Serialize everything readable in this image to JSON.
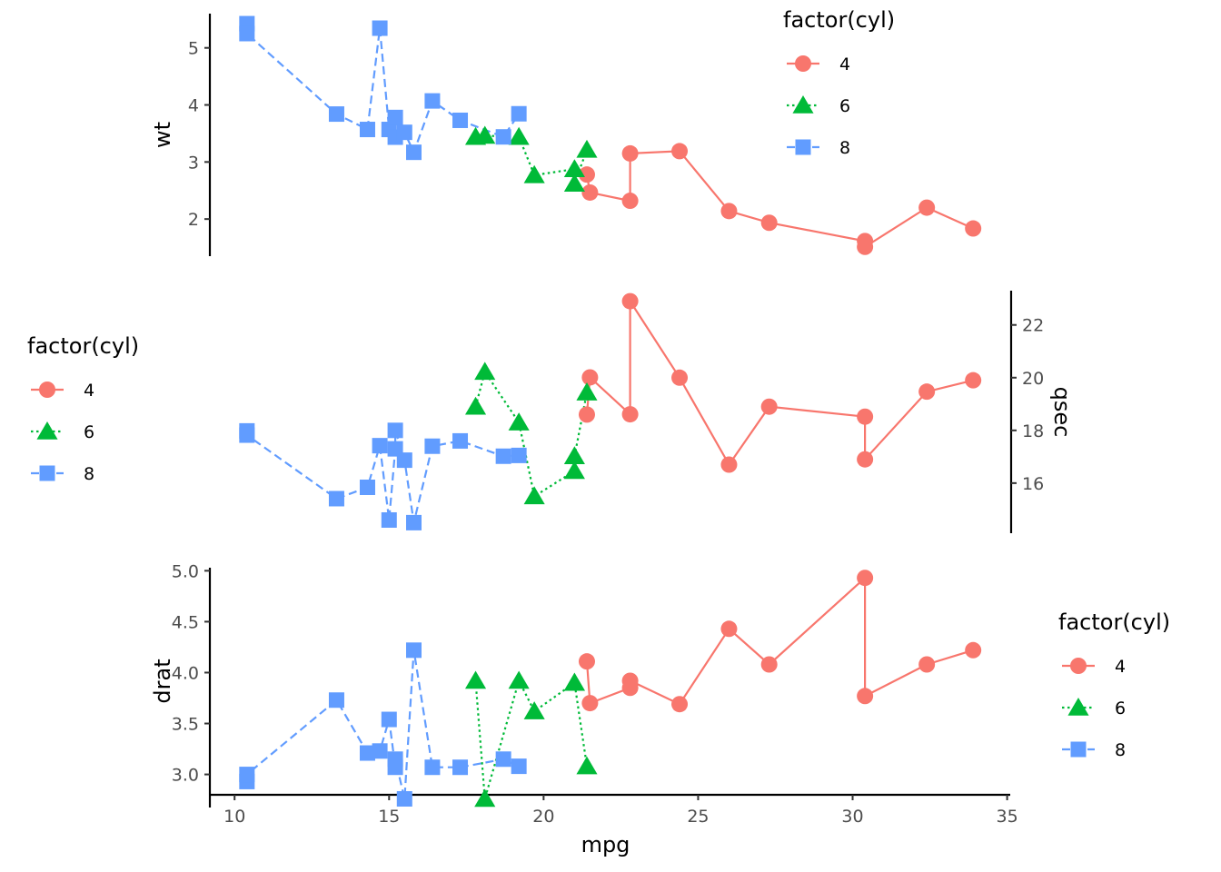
{
  "chart_data": [
    {
      "type": "line",
      "x_var": "mpg",
      "y_var": "wt",
      "ylabel": "wt",
      "xlabel": "",
      "y_axis_side": "left",
      "x_axis_visible": false,
      "xlim": [
        9.2,
        35.1
      ],
      "ylim": [
        1.35,
        5.6
      ],
      "yticks": [
        2,
        3,
        4,
        5
      ],
      "ytick_labels": [
        "2",
        "3",
        "4",
        "5"
      ],
      "grid": false,
      "legend": {
        "title": "factor(cyl)",
        "position": "top-right",
        "labels": [
          "4",
          "6",
          "8"
        ]
      },
      "series": [
        {
          "name": "4",
          "marker": "circle",
          "line": "solid",
          "color": "#F8766D",
          "points": [
            [
              21.4,
              2.78
            ],
            [
              21.5,
              2.465
            ],
            [
              22.8,
              2.32
            ],
            [
              22.8,
              3.15
            ],
            [
              24.4,
              3.19
            ],
            [
              26.0,
              2.14
            ],
            [
              27.3,
              1.935
            ],
            [
              30.4,
              1.615
            ],
            [
              30.4,
              1.513
            ],
            [
              32.4,
              2.2
            ],
            [
              33.9,
              1.835
            ]
          ]
        },
        {
          "name": "6",
          "marker": "triangle",
          "line": "dotted",
          "color": "#00BA38",
          "points": [
            [
              17.8,
              3.44
            ],
            [
              18.1,
              3.46
            ],
            [
              19.2,
              3.44
            ],
            [
              19.7,
              2.77
            ],
            [
              21.0,
              2.875
            ],
            [
              21.0,
              2.62
            ],
            [
              21.4,
              3.215
            ]
          ]
        },
        {
          "name": "8",
          "marker": "square",
          "line": "dashed",
          "color": "#619CFF",
          "points": [
            [
              10.4,
              5.424
            ],
            [
              10.4,
              5.25
            ],
            [
              13.3,
              3.84
            ],
            [
              14.3,
              3.57
            ],
            [
              14.7,
              5.345
            ],
            [
              15.0,
              3.57
            ],
            [
              15.2,
              3.78
            ],
            [
              15.2,
              3.435
            ],
            [
              15.5,
              3.52
            ],
            [
              15.8,
              3.17
            ],
            [
              16.4,
              4.07
            ],
            [
              17.3,
              3.73
            ],
            [
              18.7,
              3.44
            ],
            [
              19.2,
              3.845
            ]
          ]
        }
      ]
    },
    {
      "type": "line",
      "x_var": "mpg",
      "y_var": "qsec",
      "ylabel": "qsec",
      "xlabel": "",
      "y_axis_side": "right",
      "x_axis_visible": false,
      "xlim": [
        9.2,
        35.1
      ],
      "ylim": [
        14.1,
        23.3
      ],
      "yticks": [
        16,
        18,
        20,
        22
      ],
      "ytick_labels": [
        "16",
        "18",
        "20",
        "22"
      ],
      "grid": false,
      "legend": {
        "title": "factor(cyl)",
        "position": "left",
        "labels": [
          "4",
          "6",
          "8"
        ]
      },
      "series": [
        {
          "name": "4",
          "marker": "circle",
          "line": "solid",
          "color": "#F8766D",
          "points": [
            [
              21.4,
              18.6
            ],
            [
              21.5,
              20.01
            ],
            [
              22.8,
              18.61
            ],
            [
              22.8,
              22.9
            ],
            [
              24.4,
              20.0
            ],
            [
              26.0,
              16.7
            ],
            [
              27.3,
              18.9
            ],
            [
              30.4,
              18.52
            ],
            [
              30.4,
              16.9
            ],
            [
              32.4,
              19.47
            ],
            [
              33.9,
              19.9
            ]
          ]
        },
        {
          "name": "6",
          "marker": "triangle",
          "line": "dotted",
          "color": "#00BA38",
          "points": [
            [
              17.8,
              18.9
            ],
            [
              18.1,
              20.22
            ],
            [
              19.2,
              18.3
            ],
            [
              19.7,
              15.5
            ],
            [
              21.0,
              16.46
            ],
            [
              21.0,
              17.02
            ],
            [
              21.4,
              19.44
            ]
          ]
        },
        {
          "name": "8",
          "marker": "square",
          "line": "dashed",
          "color": "#619CFF",
          "points": [
            [
              10.4,
              17.98
            ],
            [
              10.4,
              17.82
            ],
            [
              13.3,
              15.41
            ],
            [
              14.3,
              15.84
            ],
            [
              14.7,
              17.42
            ],
            [
              15.0,
              14.6
            ],
            [
              15.2,
              17.3
            ],
            [
              15.2,
              18.0
            ],
            [
              15.5,
              16.87
            ],
            [
              15.8,
              14.5
            ],
            [
              16.4,
              17.4
            ],
            [
              17.3,
              17.6
            ],
            [
              18.7,
              17.02
            ],
            [
              19.2,
              17.05
            ]
          ]
        }
      ]
    },
    {
      "type": "line",
      "x_var": "mpg",
      "y_var": "drat",
      "ylabel": "drat",
      "xlabel": "mpg",
      "y_axis_side": "left",
      "x_axis_visible": true,
      "xlim": [
        9.2,
        35.1
      ],
      "ylim": [
        2.8,
        5.03
      ],
      "xticks": [
        10,
        15,
        20,
        25,
        30,
        35
      ],
      "xtick_labels": [
        "10",
        "15",
        "20",
        "25",
        "30",
        "35"
      ],
      "yticks": [
        3.0,
        3.5,
        4.0,
        4.5,
        5.0
      ],
      "ytick_labels": [
        "3.0",
        "3.5",
        "4.0",
        "4.5",
        "5.0"
      ],
      "grid": false,
      "legend": {
        "title": "factor(cyl)",
        "position": "right",
        "labels": [
          "4",
          "6",
          "8"
        ]
      },
      "series": [
        {
          "name": "4",
          "marker": "circle",
          "line": "solid",
          "color": "#F8766D",
          "points": [
            [
              21.4,
              4.11
            ],
            [
              21.5,
              3.7
            ],
            [
              22.8,
              3.85
            ],
            [
              22.8,
              3.92
            ],
            [
              24.4,
              3.69
            ],
            [
              26.0,
              4.43
            ],
            [
              27.3,
              4.08
            ],
            [
              30.4,
              4.93
            ],
            [
              30.4,
              3.77
            ],
            [
              32.4,
              4.08
            ],
            [
              33.9,
              4.22
            ]
          ]
        },
        {
          "name": "6",
          "marker": "triangle",
          "line": "dotted",
          "color": "#00BA38",
          "points": [
            [
              17.8,
              3.92
            ],
            [
              18.1,
              2.76
            ],
            [
              19.2,
              3.92
            ],
            [
              19.7,
              3.62
            ],
            [
              21.0,
              3.9
            ],
            [
              21.0,
              3.9
            ],
            [
              21.4,
              3.08
            ]
          ]
        },
        {
          "name": "8",
          "marker": "square",
          "line": "dashed",
          "color": "#619CFF",
          "points": [
            [
              10.4,
              2.93
            ],
            [
              10.4,
              3.0
            ],
            [
              13.3,
              3.73
            ],
            [
              14.3,
              3.21
            ],
            [
              14.7,
              3.23
            ],
            [
              15.0,
              3.54
            ],
            [
              15.2,
              3.07
            ],
            [
              15.2,
              3.15
            ],
            [
              15.5,
              2.76
            ],
            [
              15.8,
              4.22
            ],
            [
              16.4,
              3.07
            ],
            [
              17.3,
              3.07
            ],
            [
              18.7,
              3.15
            ],
            [
              19.2,
              3.08
            ]
          ]
        }
      ]
    }
  ]
}
